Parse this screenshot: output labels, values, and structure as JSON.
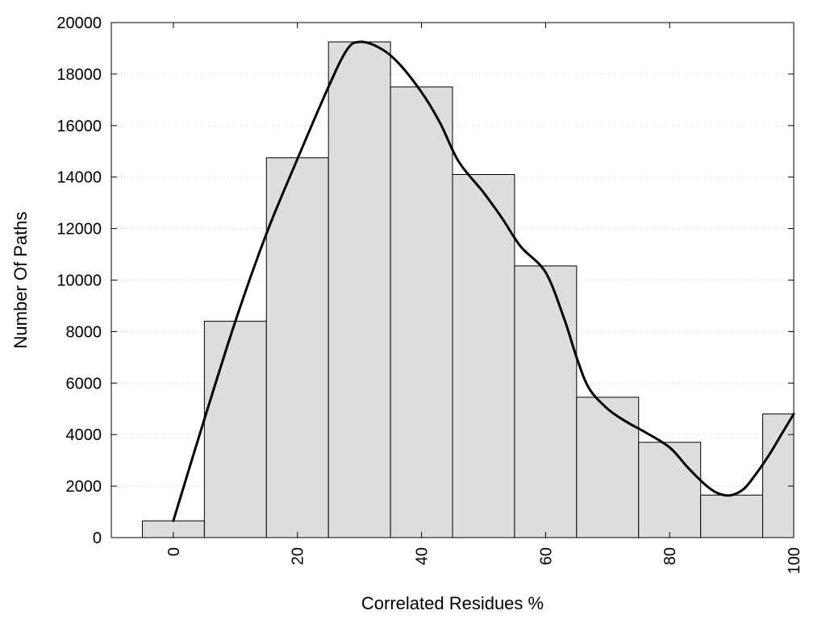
{
  "chart_data": {
    "type": "bar",
    "title": "",
    "xlabel": "Correlated Residues %",
    "ylabel": "Number Of Paths",
    "xlim": [
      -10,
      100
    ],
    "ylim": [
      0,
      20000
    ],
    "bin_width": 10,
    "grid": "horizontal dotted",
    "legend": "none",
    "x_ticks": [
      0,
      20,
      40,
      60,
      80,
      100
    ],
    "y_ticks": [
      0,
      2000,
      4000,
      6000,
      8000,
      10000,
      12000,
      14000,
      16000,
      18000,
      20000
    ],
    "series": [
      {
        "kind": "bars",
        "x": [
          0,
          10,
          20,
          30,
          40,
          50,
          60,
          70,
          80,
          90,
          100
        ],
        "values": [
          650,
          8400,
          14750,
          19250,
          17500,
          14100,
          10550,
          5450,
          3700,
          1650,
          4800
        ]
      },
      {
        "kind": "curve",
        "x": [
          0,
          5,
          10,
          15,
          20,
          25,
          28,
          30,
          33,
          36,
          40,
          43,
          46,
          50,
          53,
          56,
          60,
          63,
          65,
          67,
          70,
          73,
          76,
          80,
          83,
          86,
          88,
          90,
          92,
          94,
          96,
          98,
          100
        ],
        "values": [
          650,
          4600,
          8400,
          11800,
          14700,
          17500,
          18950,
          19250,
          19050,
          18500,
          17300,
          16100,
          14600,
          13400,
          12400,
          11300,
          10300,
          8500,
          7000,
          5800,
          5000,
          4500,
          4100,
          3500,
          2700,
          2000,
          1700,
          1650,
          1900,
          2500,
          3200,
          4000,
          4800
        ]
      }
    ],
    "colors": {
      "bar_fill": "#dddddd",
      "bar_stroke": "#000000",
      "curve": "#000000"
    }
  }
}
